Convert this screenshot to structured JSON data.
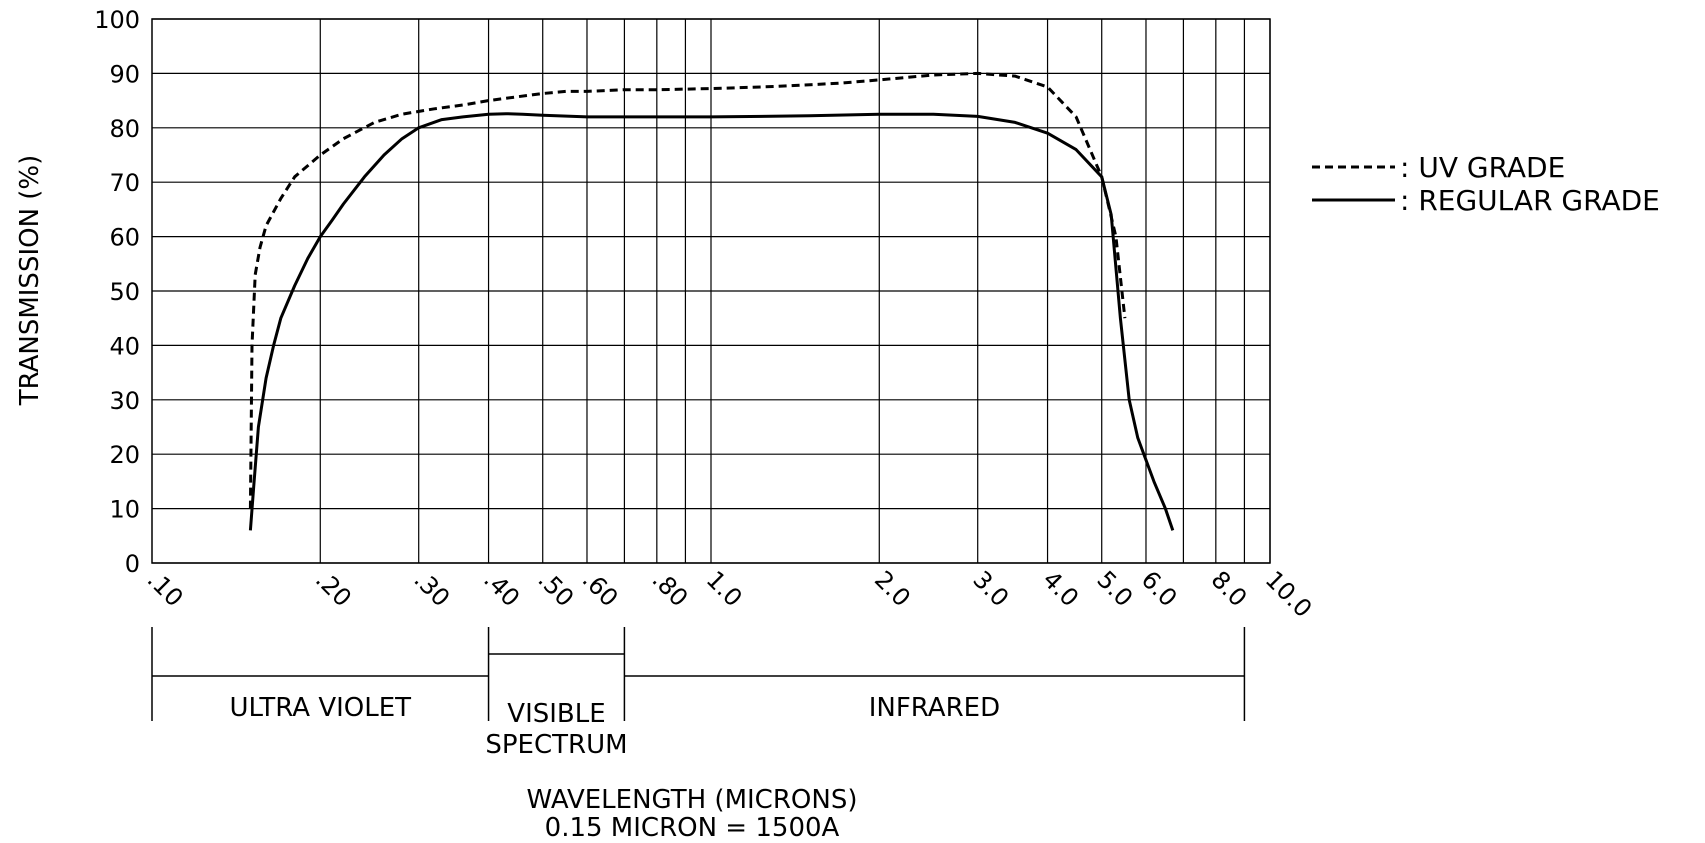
{
  "chart_data": {
    "type": "line",
    "x_scale": "log",
    "xlim": [
      0.1,
      10.0
    ],
    "ylim": [
      0,
      100
    ],
    "grid": true,
    "ylabel": "TRANSMISSION (%)",
    "xlabel": "WAVELENGTH (MICRONS)",
    "xlabel_note": "0.15 MICRON = 1500A",
    "y_ticks": [
      "0",
      "10",
      "20",
      "30",
      "40",
      "50",
      "60",
      "70",
      "80",
      "90",
      "100"
    ],
    "x_tick_labels": [
      {
        "value": 0.1,
        "label": ".10"
      },
      {
        "value": 0.2,
        "label": ".20"
      },
      {
        "value": 0.3,
        "label": ".30"
      },
      {
        "value": 0.4,
        "label": ".40"
      },
      {
        "value": 0.5,
        "label": ".50"
      },
      {
        "value": 0.6,
        "label": ".60"
      },
      {
        "value": 0.8,
        "label": ".80"
      },
      {
        "value": 1.0,
        "label": "1.0"
      },
      {
        "value": 2.0,
        "label": "2.0"
      },
      {
        "value": 3.0,
        "label": "3.0"
      },
      {
        "value": 4.0,
        "label": "4.0"
      },
      {
        "value": 5.0,
        "label": "5.0"
      },
      {
        "value": 6.0,
        "label": "6.0"
      },
      {
        "value": 8.0,
        "label": "8.0"
      },
      {
        "value": 10.0,
        "label": "10.0"
      }
    ],
    "x_gridlines": [
      0.2,
      0.3,
      0.4,
      0.5,
      0.6,
      0.7,
      0.8,
      0.9,
      1.0,
      2.0,
      3.0,
      4.0,
      5.0,
      6.0,
      7.0,
      8.0,
      9.0,
      10.0
    ],
    "series": [
      {
        "name": "UV GRADE",
        "style": "dashed",
        "x": [
          0.15,
          0.151,
          0.153,
          0.156,
          0.16,
          0.17,
          0.18,
          0.2,
          0.22,
          0.25,
          0.28,
          0.32,
          0.36,
          0.4,
          0.45,
          0.5,
          0.55,
          0.6,
          0.7,
          0.8,
          1.0,
          1.3,
          1.7,
          2.0,
          2.5,
          3.0,
          3.5,
          4.0,
          4.5,
          5.0,
          5.3,
          5.5
        ],
        "y": [
          10,
          40,
          53,
          58,
          62,
          67,
          71,
          75,
          78,
          81,
          82.5,
          83.5,
          84.2,
          85,
          85.7,
          86.3,
          86.7,
          86.7,
          87,
          87,
          87.2,
          87.6,
          88.2,
          88.8,
          89.7,
          90,
          89.5,
          87.5,
          82,
          71,
          60,
          45
        ]
      },
      {
        "name": "REGULAR GRADE",
        "style": "solid",
        "x": [
          0.15,
          0.152,
          0.155,
          0.16,
          0.165,
          0.17,
          0.18,
          0.19,
          0.2,
          0.21,
          0.22,
          0.24,
          0.26,
          0.28,
          0.3,
          0.33,
          0.36,
          0.4,
          0.43,
          0.46,
          0.5,
          0.6,
          0.7,
          1.0,
          1.5,
          2.0,
          2.5,
          3.0,
          3.5,
          4.0,
          4.5,
          5.0,
          5.2,
          5.4,
          5.6,
          5.8,
          6.2,
          6.5,
          6.7
        ],
        "y": [
          6,
          14,
          25,
          34,
          40,
          45,
          51,
          56,
          60,
          63,
          66,
          71,
          75,
          78,
          80,
          81.5,
          82,
          82.5,
          82.6,
          82.5,
          82.3,
          82,
          82,
          82,
          82.2,
          82.5,
          82.5,
          82.1,
          81,
          79,
          76,
          71,
          64,
          45,
          30,
          23,
          15,
          10,
          6
        ]
      }
    ],
    "legend": {
      "placement": "right",
      "entries": [
        {
          "label": ": UV GRADE",
          "style": "dashed"
        },
        {
          "label": ": REGULAR GRADE",
          "style": "solid"
        }
      ]
    },
    "regions": [
      {
        "label": "ULTRA VIOLET",
        "from": 0.1,
        "to": 0.4
      },
      {
        "label": "VISIBLE SPECTRUM",
        "lines": [
          "VISIBLE",
          "SPECTRUM"
        ],
        "from": 0.4,
        "to": 0.7
      },
      {
        "label": "INFRARED",
        "from": 0.7,
        "to": 9.0
      }
    ]
  }
}
